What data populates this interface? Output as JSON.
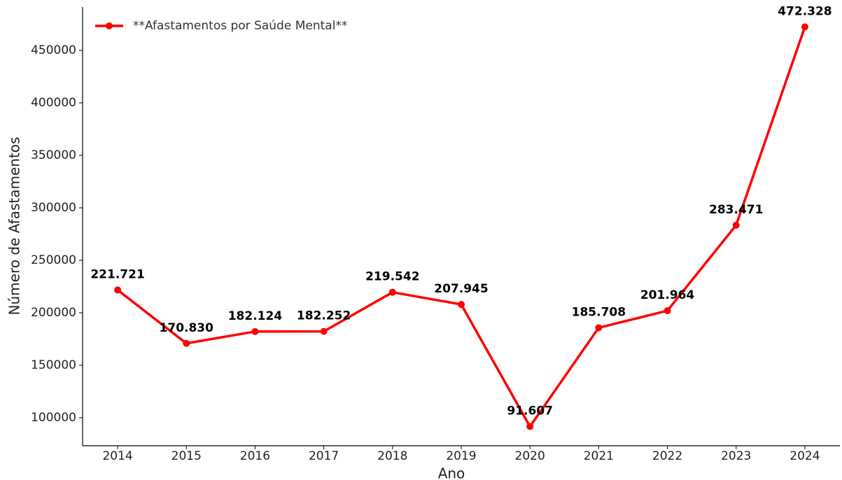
{
  "chart_data": {
    "type": "line",
    "xlabel": "Ano",
    "ylabel": "Número de Afastamentos",
    "x": [
      2014,
      2015,
      2016,
      2017,
      2018,
      2019,
      2020,
      2021,
      2022,
      2023,
      2024
    ],
    "series": [
      {
        "name": "**Afastamentos por Saúde Mental**",
        "color": "#ff0000",
        "values": [
          221721,
          170830,
          182124,
          182252,
          219542,
          207945,
          91607,
          185708,
          201964,
          283471,
          472328
        ],
        "value_labels": [
          "221.721",
          "170.830",
          "182.124",
          "182.252",
          "219.542",
          "207.945",
          "91.607",
          "185.708",
          "201.964",
          "283.471",
          "472.328"
        ]
      }
    ],
    "xlim": [
      2013.49,
      2024.51
    ],
    "xticks": [
      2014,
      2015,
      2016,
      2017,
      2018,
      2019,
      2020,
      2021,
      2022,
      2023,
      2024
    ],
    "ylim": [
      73333,
      491333
    ],
    "yticks": [
      100000,
      150000,
      200000,
      250000,
      300000,
      350000,
      400000,
      450000
    ],
    "grid": false,
    "legend": "upper left"
  }
}
